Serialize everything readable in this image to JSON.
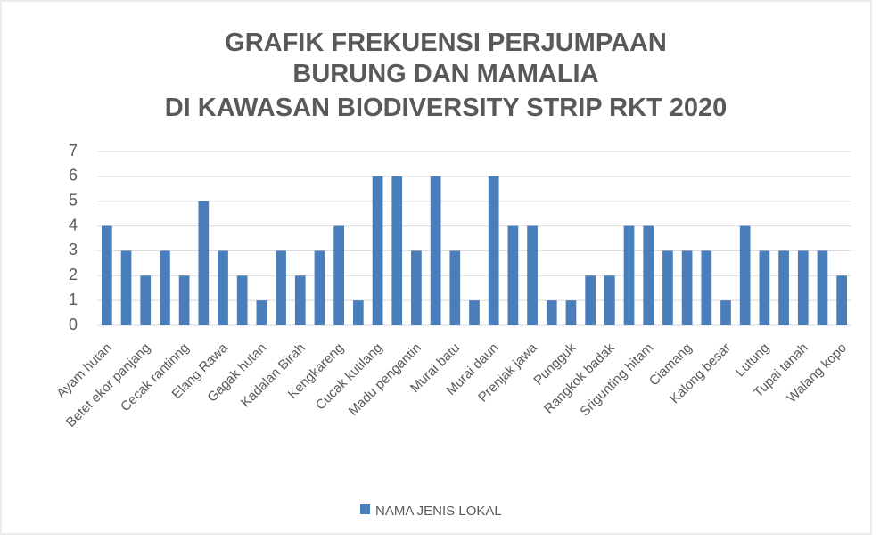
{
  "chart_data": {
    "type": "bar",
    "title": [
      "GRAFIK FREKUENSI PERJUMPAAN",
      "BURUNG DAN MAMALIA",
      "DI KAWASAN BIODIVERSITY STRIP RKT 2020"
    ],
    "categories": [
      "Ayam hutan",
      null,
      "Betet ekor panjang",
      null,
      "Cecak rantinng",
      null,
      "Elang Rawa",
      null,
      "Gagak hutan",
      null,
      "Kadalan Birah",
      null,
      "Kengkareng",
      null,
      "Cucak kutilang",
      null,
      "Madu pengantin",
      null,
      "Murai batu",
      null,
      "Murai daun",
      null,
      "Prenjak jawa",
      null,
      "Pungguk",
      null,
      "Rangkok badak",
      null,
      "Srigunting hitam",
      null,
      "Ciamang",
      null,
      "Kalong besar",
      null,
      "Lutung",
      null,
      "Tupai tanah",
      null,
      "Walang kopo"
    ],
    "series": [
      {
        "name": "NAMA JENIS LOKAL",
        "color": "#4a7ebb",
        "values": [
          4,
          3,
          2,
          3,
          2,
          5,
          3,
          2,
          1,
          3,
          2,
          3,
          4,
          1,
          6,
          6,
          3,
          6,
          3,
          1,
          6,
          4,
          4,
          1,
          1,
          2,
          2,
          4,
          4,
          3,
          3,
          3,
          1,
          4,
          3,
          3,
          3,
          3,
          2
        ]
      }
    ],
    "ylim": [
      0,
      7
    ],
    "yticks": [
      0,
      1,
      2,
      3,
      4,
      5,
      6,
      7
    ],
    "grid": true,
    "legend": "bottom"
  }
}
